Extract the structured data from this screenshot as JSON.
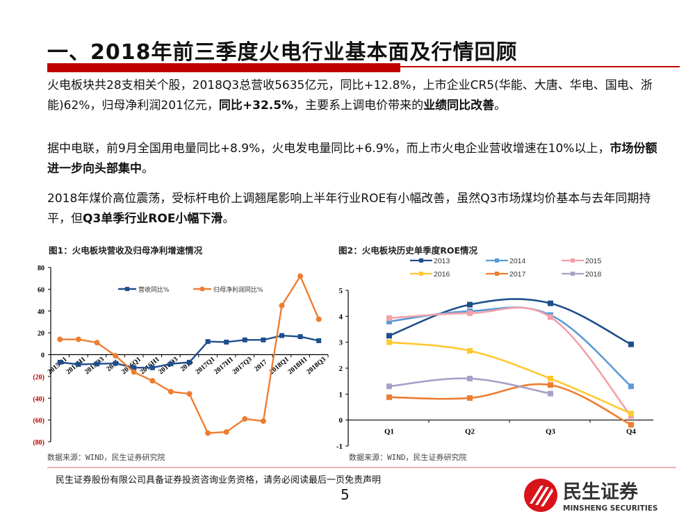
{
  "header": {
    "title": "一、2018年前三季度火电行业基本面及行情回顾"
  },
  "paragraphs": [
    {
      "segments": [
        {
          "text": "火电板块共28支相关个股，2018Q3总营收5635亿元，同比+12.8%，上市企业CR5(华能、大唐、华电、国电、浙能)62%，归母净利润201亿元，",
          "bold": false
        },
        {
          "text": "同比+32.5%",
          "bold": true
        },
        {
          "text": "，主要系上调电价带来的",
          "bold": false
        },
        {
          "text": "业绩同比改善",
          "bold": true
        },
        {
          "text": "。",
          "bold": false
        }
      ]
    },
    {
      "segments": [
        {
          "text": "据中电联，前9月全国用电量同比+8.9%，火电发电量同比+6.9%，而上市火电企业营收增速在10%以上，",
          "bold": false
        },
        {
          "text": "市场份额进一步向头部集中",
          "bold": true
        },
        {
          "text": "。",
          "bold": false
        }
      ]
    },
    {
      "segments": [
        {
          "text": "2018年煤价高位震荡，受标杆电价上调翘尾影响上半年行业ROE有小幅改善，虽然Q3市场煤均价基本与去年同期持平，但",
          "bold": false
        },
        {
          "text": "Q3单季行业ROE小幅下滑",
          "bold": true
        },
        {
          "text": "。",
          "bold": false
        }
      ]
    }
  ],
  "figures": [
    {
      "title": "图1：火电板块营收及归母净利增速情况",
      "source": "数据来源：WIND，民生证券研究院"
    },
    {
      "title": "图2：火电板块历史单季度ROE情况",
      "source": "数据来源：WIND，民生证券研究院"
    }
  ],
  "chart_data": [
    {
      "type": "line",
      "title": "图1：火电板块营收及归母净利增速情况",
      "xlabel": "",
      "ylabel": "",
      "ylim": [
        -80,
        80
      ],
      "yticks": [
        80,
        60,
        40,
        20,
        0,
        -20,
        -40,
        -60,
        -80
      ],
      "ytick_labels": [
        "80",
        "60",
        "40",
        "20",
        "0",
        "(20)",
        "(40)",
        "(60)",
        "(80)"
      ],
      "negative_tick_color": "#c00000",
      "grid": false,
      "legend": "top-center",
      "categories": [
        "2015Q1",
        "2015H1",
        "2015Q3",
        "2015",
        "2016Q1",
        "2016H1",
        "2016Q3",
        "2016",
        "2017Q1",
        "2017H1",
        "2017Q3",
        "2017",
        "2018Q1",
        "2018H1",
        "2018Q3"
      ],
      "series": [
        {
          "name": "营收同比%",
          "color": "#1f4e8c",
          "values": [
            -7,
            -9,
            -8.5,
            -8,
            -12,
            -12,
            -8.5,
            -7,
            12,
            11.5,
            13.5,
            13.5,
            17.5,
            16.5,
            12.8
          ]
        },
        {
          "name": "归母净利润同比%",
          "color": "#ed7d31",
          "values": [
            14,
            14,
            11,
            -1,
            -16,
            -24,
            -34,
            -36,
            -72,
            -71,
            -59,
            -61,
            45,
            72,
            32.5
          ]
        }
      ]
    },
    {
      "type": "line",
      "title": "图2：火电板块历史单季度ROE情况",
      "xlabel": "",
      "ylabel": "",
      "ylim": [
        -1,
        5
      ],
      "yticks": [
        5,
        4,
        3,
        2,
        1,
        0,
        -1
      ],
      "grid": false,
      "legend": "top",
      "smooth": true,
      "categories": [
        "Q1",
        "Q2",
        "Q3",
        "Q4"
      ],
      "series": [
        {
          "name": "2013",
          "color": "#1f4e8c",
          "values": [
            3.25,
            4.45,
            4.5,
            2.92
          ]
        },
        {
          "name": "2014",
          "color": "#5b9bd5",
          "values": [
            3.8,
            4.2,
            4.05,
            1.3
          ]
        },
        {
          "name": "2015",
          "color": "#f4a0a8",
          "values": [
            3.93,
            4.12,
            3.97,
            0.15
          ]
        },
        {
          "name": "2016",
          "color": "#ffc830",
          "values": [
            3.0,
            2.67,
            1.6,
            0.25
          ]
        },
        {
          "name": "2017",
          "color": "#ed7d31",
          "values": [
            0.88,
            0.85,
            1.35,
            -0.18
          ]
        },
        {
          "name": "2018",
          "color": "#a9a0c8",
          "values": [
            1.3,
            1.6,
            1.02,
            null
          ]
        }
      ]
    }
  ],
  "footer": {
    "disclaimer": "民生证券股份有限公司具备证券投资咨询业务资格，请务必阅读最后一页免责声明",
    "page_number": "5",
    "logo_cn": "民生证券",
    "logo_en": "MINSHENG SECURITIES",
    "brand_color": "#d7141a"
  }
}
